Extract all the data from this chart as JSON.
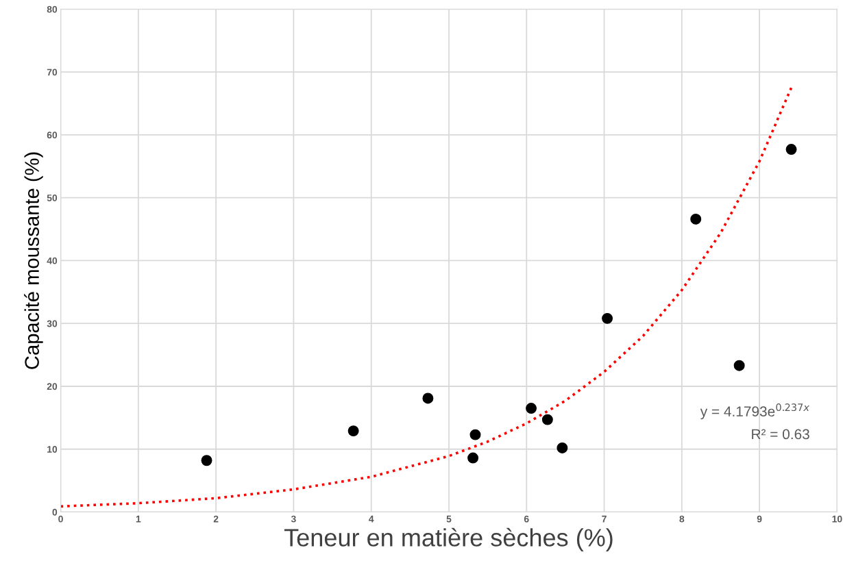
{
  "chart_data": {
    "type": "scatter",
    "xlabel": "Teneur en matière sèches (%)",
    "ylabel": "Capacité moussante (%)",
    "xlim": [
      0,
      10
    ],
    "xticks": [
      0,
      1,
      2,
      3,
      4,
      5,
      6,
      7,
      8,
      9,
      10
    ],
    "ylim": [
      0,
      80
    ],
    "yticks": [
      0,
      10,
      20,
      30,
      40,
      50,
      60,
      70,
      80
    ],
    "grid": true,
    "series": [
      {
        "color": "#000000",
        "marker": "circle",
        "x": [
          1.88,
          3.77,
          4.73,
          5.31,
          5.34,
          6.06,
          6.27,
          6.46,
          7.04,
          8.18,
          8.74,
          9.41
        ],
        "values": [
          8.2,
          12.9,
          18.1,
          8.6,
          12.3,
          16.5,
          14.7,
          10.2,
          30.8,
          46.6,
          23.3,
          57.7
        ]
      },
      {
        "type": "line",
        "color": "#ff0000",
        "line_style": "dotted",
        "marker": "none",
        "x": [
          0,
          1,
          2,
          3,
          4,
          5,
          5.5,
          6,
          6.5,
          7,
          7.5,
          8,
          8.5,
          9,
          9.41
        ],
        "values": [
          0.9,
          1.4,
          2.2,
          3.6,
          5.6,
          8.9,
          11.2,
          14.1,
          17.7,
          22.3,
          28.0,
          35.3,
          44.4,
          55.8,
          67.5
        ]
      }
    ],
    "annotations": [
      "y = 4.1793e$^{0.237x}$",
      "R² = 0.63"
    ]
  }
}
